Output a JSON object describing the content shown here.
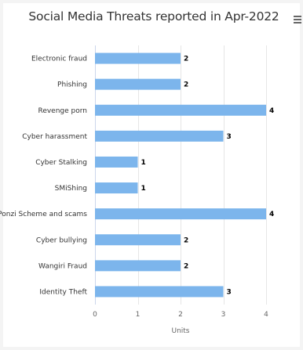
{
  "chart_data": {
    "type": "bar",
    "orientation": "horizontal",
    "title": "Social Media Threats reported in Apr-2022",
    "categories": [
      "Electronic fraud",
      "Phishing",
      "Revenge porn",
      "Cyber harassment",
      "Cyber Stalking",
      "SMiShing",
      "Ponzi Scheme and scams",
      "Cyber bullying",
      "Wangiri Fraud",
      "Identity Theft"
    ],
    "values": [
      2,
      2,
      4,
      3,
      1,
      1,
      4,
      2,
      2,
      3
    ],
    "xlabel": "Units",
    "ylabel": "",
    "xlim": [
      0,
      4
    ],
    "xticks": [
      0,
      1,
      2,
      3,
      4
    ],
    "grid": true,
    "bar_color": "#7cb5ec",
    "data_labels": true
  },
  "menu_icon": "hamburger-menu-icon"
}
